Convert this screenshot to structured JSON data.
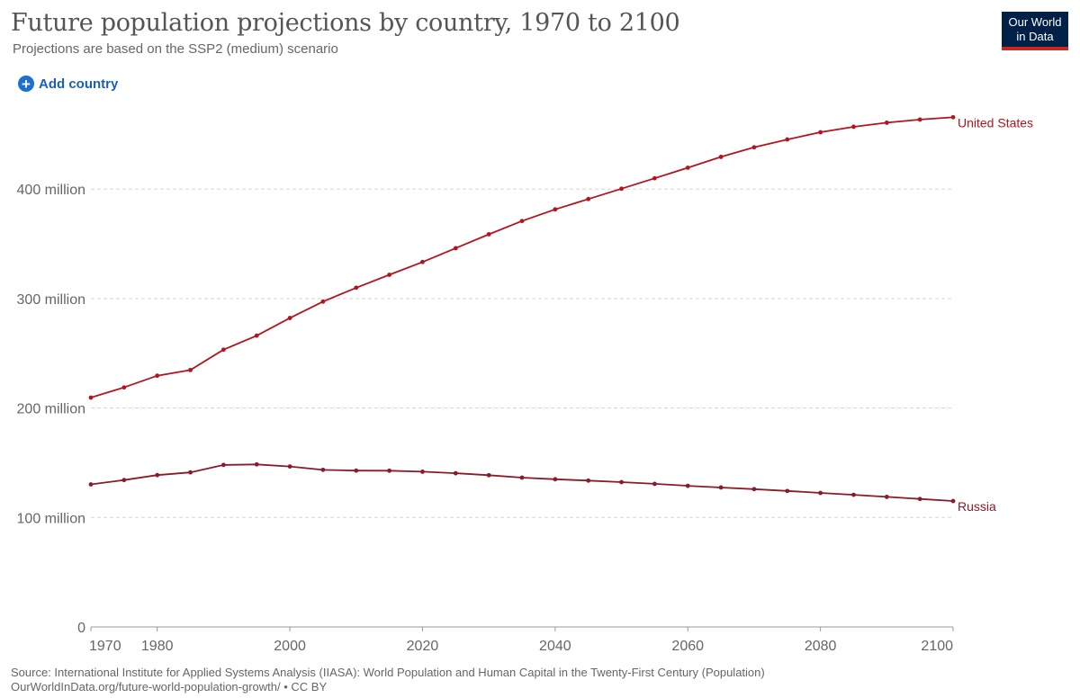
{
  "header": {
    "title": "Future population projections by country, 1970 to 2100",
    "subtitle": "Projections are based on the SSP2 (medium) scenario"
  },
  "logo": {
    "line1": "Our World",
    "line2": "in Data"
  },
  "controls": {
    "add_country_label": "Add country"
  },
  "footer": {
    "source": "Source: International Institute for Applied Systems Analysis (IIASA): World Population and Human Capital in the Twenty-First Century (Population)",
    "link": "OurWorldInData.org/future-world-population-growth/ • CC BY"
  },
  "colors": {
    "united_states": "#b3141e",
    "russia": "#8a1b2a",
    "grid": "#d5d5d5",
    "axis": "#666666"
  },
  "chart_data": {
    "type": "line",
    "xlim": [
      1970,
      2100
    ],
    "ylim": [
      0,
      470
    ],
    "x_ticks": [
      1970,
      1980,
      2000,
      2020,
      2040,
      2060,
      2080,
      2100
    ],
    "y_ticks": [
      {
        "value": 0,
        "label": "0"
      },
      {
        "value": 100,
        "label": "100 million"
      },
      {
        "value": 200,
        "label": "200 million"
      },
      {
        "value": 300,
        "label": "300 million"
      },
      {
        "value": 400,
        "label": "400 million"
      }
    ],
    "grid": true,
    "x": [
      1970,
      1975,
      1980,
      1985,
      1990,
      1995,
      2000,
      2005,
      2010,
      2015,
      2020,
      2025,
      2030,
      2035,
      2040,
      2045,
      2050,
      2055,
      2060,
      2065,
      2070,
      2075,
      2080,
      2085,
      2090,
      2095,
      2100
    ],
    "series": [
      {
        "name": "United States",
        "color": "#b3141e",
        "values": [
          209.5,
          218.8,
          229.5,
          234.7,
          253.3,
          266.1,
          282.2,
          297.2,
          309.9,
          321.7,
          333.4,
          346.0,
          358.7,
          370.8,
          381.4,
          390.9,
          400.3,
          409.9,
          419.5,
          429.4,
          438.1,
          445.3,
          451.9,
          456.9,
          460.6,
          463.5,
          465.6
        ]
      },
      {
        "name": "Russia",
        "color": "#8a1b2a",
        "values": [
          130.2,
          134.2,
          138.7,
          141.2,
          148.0,
          148.5,
          146.6,
          143.5,
          142.8,
          142.7,
          141.8,
          140.4,
          138.6,
          136.4,
          134.9,
          133.7,
          132.3,
          130.7,
          128.9,
          127.4,
          125.9,
          124.2,
          122.4,
          120.7,
          118.8,
          116.9,
          115.0
        ]
      }
    ]
  }
}
